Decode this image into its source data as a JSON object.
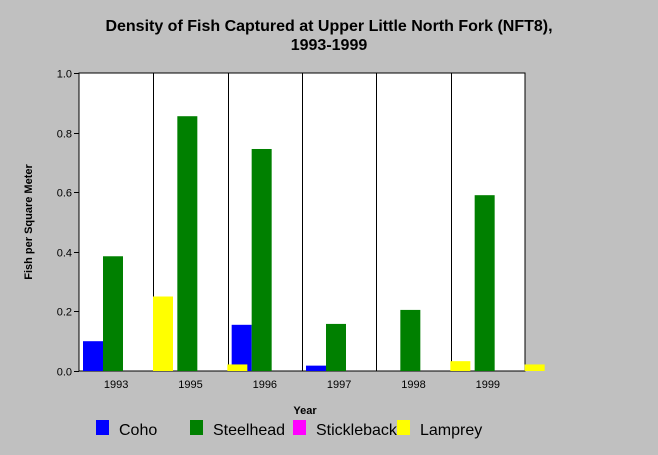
{
  "chart_data": {
    "type": "bar",
    "title": "Density of Fish Captured at Upper Little North Fork (NFT8),",
    "subtitle": "1993-1999",
    "xlabel": "Year",
    "ylabel": "Fish per Square Meter",
    "ylim": [
      0,
      1.0
    ],
    "yticks": [
      "0.0",
      "0.2",
      "0.4",
      "0.6",
      "0.8",
      "1.0"
    ],
    "grid": "vertical",
    "legend": "bottom",
    "categories": [
      "1993",
      "1995",
      "1996",
      "1997",
      "1998",
      "1999"
    ],
    "series": [
      {
        "name": "Coho",
        "color": "#0000ff",
        "values": [
          0.1,
          0.0,
          0.155,
          0.018,
          0.0,
          0.0
        ]
      },
      {
        "name": "Steelhead",
        "color": "#008000",
        "values": [
          0.385,
          0.855,
          0.745,
          0.158,
          0.205,
          0.59
        ]
      },
      {
        "name": "Stickleback",
        "color": "#ff00ff",
        "values": [
          0.0,
          0.0,
          0.0,
          0.0,
          0.0,
          0.0
        ]
      },
      {
        "name": "Lamprey",
        "color": "#ffff00",
        "values": [
          0.25,
          0.022,
          0.0,
          0.0,
          0.033,
          0.022
        ]
      }
    ]
  }
}
